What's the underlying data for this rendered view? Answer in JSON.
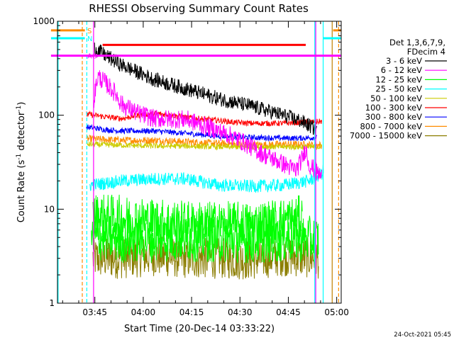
{
  "chart_data": {
    "type": "line",
    "title": "RHESSI Observing Summary Count Rates",
    "xlabel": "Start Time (20-Dec-14 03:33:22)",
    "ylabel_main": "Count Rate (s",
    "ylabel_sup1": "-1",
    "ylabel_mid": " detector",
    "ylabel_sup2": "-1",
    "ylabel_end": ")",
    "yscale": "log",
    "ylim": [
      1,
      1000
    ],
    "xlim_minutes": [
      0,
      88
    ],
    "x_ticks": [
      {
        "label": "03:45",
        "minute": 11.6
      },
      {
        "label": "04:00",
        "minute": 26.6
      },
      {
        "label": "04:15",
        "minute": 41.6
      },
      {
        "label": "04:30",
        "minute": 56.6
      },
      {
        "label": "04:45",
        "minute": 71.6
      },
      {
        "label": "05:00",
        "minute": 86.6
      }
    ],
    "y_ticks": [
      {
        "label": "1",
        "value": 1
      },
      {
        "label": "10",
        "value": 10
      },
      {
        "label": "100",
        "value": 100
      },
      {
        "label": "1000",
        "value": 1000
      }
    ],
    "legend_header": [
      "Det 1,3,6,7,9,",
      "FDecim 4"
    ],
    "legend_position": "right",
    "series": [
      {
        "name": "3 - 6 keV",
        "color": "#000000",
        "start": 11.5,
        "end": 80.5,
        "noise": 0.08,
        "points": [
          [
            11.5,
            520
          ],
          [
            15,
            430
          ],
          [
            20,
            340
          ],
          [
            30,
            240
          ],
          [
            40,
            190
          ],
          [
            50,
            150
          ],
          [
            60,
            125
          ],
          [
            70,
            100
          ],
          [
            75,
            88
          ],
          [
            78,
            78
          ],
          [
            80.5,
            70
          ]
        ]
      },
      {
        "name": "6 - 12 keV",
        "color": "#ff00ff",
        "start": 11.3,
        "end": 82,
        "noise": 0.1,
        "points": [
          [
            11.3,
            150
          ],
          [
            12.5,
            260
          ],
          [
            15,
            220
          ],
          [
            18,
            170
          ],
          [
            20,
            130
          ],
          [
            25,
            105
          ],
          [
            30,
            92
          ],
          [
            40,
            90
          ],
          [
            50,
            68
          ],
          [
            55,
            58
          ],
          [
            60,
            46
          ],
          [
            64,
            38
          ],
          [
            68,
            33
          ],
          [
            72,
            28
          ],
          [
            74,
            26
          ],
          [
            76,
            35
          ],
          [
            77,
            45
          ],
          [
            78,
            30
          ],
          [
            82,
            22
          ]
        ]
      },
      {
        "name": "12 - 25 keV",
        "color": "#00ff00",
        "start": 10.5,
        "end": 81,
        "noise": 0.25,
        "points": [
          [
            10.5,
            4.8
          ],
          [
            15,
            5
          ],
          [
            20,
            4.7
          ],
          [
            30,
            4.8
          ],
          [
            40,
            4.9
          ],
          [
            50,
            4.8
          ],
          [
            60,
            4.7
          ],
          [
            70,
            4.8
          ],
          [
            81,
            4.8
          ]
        ],
        "extra_spans": [
          [
            [
              11,
              8.4
            ],
            [
              20,
              8
            ],
            [
              40,
              7
            ],
            [
              60,
              6.8
            ],
            [
              76,
              8
            ]
          ]
        ]
      },
      {
        "name": "25 - 50 keV",
        "color": "#00ffff",
        "start": 10,
        "end": 82.5,
        "noise": 0.07,
        "points": [
          [
            10,
            18
          ],
          [
            20,
            20
          ],
          [
            30,
            21
          ],
          [
            40,
            21
          ],
          [
            50,
            18
          ],
          [
            60,
            17.5
          ],
          [
            70,
            18
          ],
          [
            78,
            20
          ],
          [
            82,
            24
          ],
          [
            82.5,
            26
          ]
        ]
      },
      {
        "name": "50 - 100 keV",
        "color": "#cccc00",
        "start": 9,
        "end": 82,
        "noise": 0.03,
        "points": [
          [
            9,
            49
          ],
          [
            20,
            48
          ],
          [
            30,
            47
          ],
          [
            40,
            47
          ],
          [
            50,
            46
          ],
          [
            60,
            46
          ],
          [
            70,
            46
          ],
          [
            82,
            46
          ]
        ]
      },
      {
        "name": "100 - 300 keV",
        "color": "#ff0000",
        "start": 9,
        "end": 82,
        "noise": 0.03,
        "points": [
          [
            9,
            103
          ],
          [
            15,
            96
          ],
          [
            20,
            92
          ],
          [
            25,
            100
          ],
          [
            30,
            105
          ],
          [
            35,
            100
          ],
          [
            40,
            95
          ],
          [
            50,
            88
          ],
          [
            55,
            84
          ],
          [
            60,
            82
          ],
          [
            70,
            82
          ],
          [
            82,
            86
          ]
        ]
      },
      {
        "name": "300 - 800 keV",
        "color": "#0000ff",
        "start": 9,
        "end": 80.5,
        "noise": 0.03,
        "points": [
          [
            9,
            75
          ],
          [
            15,
            70
          ],
          [
            20,
            68
          ],
          [
            30,
            68
          ],
          [
            40,
            64
          ],
          [
            50,
            60
          ],
          [
            60,
            58
          ],
          [
            70,
            57
          ],
          [
            75,
            57
          ],
          [
            80.5,
            58
          ]
        ]
      },
      {
        "name": "800 - 7000 keV",
        "color": "#ff8c00",
        "start": 9,
        "end": 82,
        "noise": 0.04,
        "points": [
          [
            9,
            56
          ],
          [
            15,
            55
          ],
          [
            20,
            54
          ],
          [
            30,
            54
          ],
          [
            40,
            52
          ],
          [
            50,
            50
          ],
          [
            60,
            48
          ],
          [
            70,
            49
          ],
          [
            82,
            48
          ]
        ]
      },
      {
        "name": "7000 - 15000 keV",
        "color": "#8b7d00",
        "start": 11,
        "end": 81,
        "noise": 0.22,
        "points": [
          [
            11,
            3
          ],
          [
            20,
            3
          ],
          [
            30,
            3.2
          ],
          [
            40,
            3
          ],
          [
            50,
            3
          ],
          [
            60,
            2.9
          ],
          [
            70,
            3.2
          ],
          [
            81,
            3
          ]
        ]
      }
    ],
    "state_bars": [
      {
        "label": "S",
        "color": "#ff8c00",
        "value": 800,
        "spans": [
          [
            -2,
            8.5
          ],
          [
            85.5,
            88
          ]
        ]
      },
      {
        "label": "N",
        "color": "#00ffff",
        "value": 660,
        "spans": [
          [
            -2,
            8.5
          ],
          [
            82.5,
            88
          ]
        ]
      },
      {
        "label": "AO",
        "color": "#ff00ff",
        "value": 430,
        "spans": [
          [
            -2,
            88
          ]
        ]
      },
      {
        "label": "",
        "color": "#ff0000",
        "value": 560,
        "spans": [
          [
            14,
            77
          ]
        ]
      }
    ],
    "vertical_markers": [
      {
        "minute": 0.2,
        "color": "#00ffff",
        "style": "solid"
      },
      {
        "minute": 7.7,
        "color": "#ff8c00",
        "style": "dash"
      },
      {
        "minute": 9.1,
        "color": "#00ffff",
        "style": "dash"
      },
      {
        "minute": 11.2,
        "color": "#ff00ff",
        "style": "solid"
      },
      {
        "minute": 79.8,
        "color": "#00ffff",
        "style": "solid"
      },
      {
        "minute": 80.1,
        "color": "#ff00ff",
        "style": "solid"
      },
      {
        "minute": 82.4,
        "color": "#00ffff",
        "style": "solid"
      },
      {
        "minute": 85.2,
        "color": "#c08000",
        "style": "solid"
      },
      {
        "minute": 87.2,
        "color": "#ff8c00",
        "style": "dash"
      }
    ]
  },
  "footer_timestamp": "24-Oct-2021 05:45"
}
